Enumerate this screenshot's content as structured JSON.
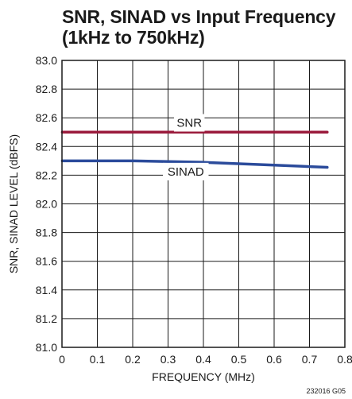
{
  "title": {
    "line1": "SNR, SINAD vs Input Frequency",
    "line2": "(1kHz to 750kHz)"
  },
  "figure_id": "232016 G05",
  "chart_data": {
    "type": "line",
    "title": "SNR, SINAD vs Input Frequency (1kHz to 750kHz)",
    "xlabel": "FREQUENCY (MHz)",
    "ylabel": "SNR, SINAD LEVEL (dBFS)",
    "xlim": [
      0,
      0.8
    ],
    "ylim": [
      81.0,
      83.0
    ],
    "x_ticks": [
      "0",
      "0.1",
      "0.2",
      "0.3",
      "0.4",
      "0.5",
      "0.6",
      "0.7",
      "0.8"
    ],
    "y_ticks": [
      "81.0",
      "81.2",
      "81.4",
      "81.6",
      "81.8",
      "82.0",
      "82.2",
      "82.4",
      "82.6",
      "82.8",
      "83.0"
    ],
    "grid": true,
    "series": [
      {
        "name": "SNR",
        "color": "#9b1b3c",
        "x": [
          0.001,
          0.1,
          0.2,
          0.3,
          0.4,
          0.5,
          0.6,
          0.7,
          0.75
        ],
        "y": [
          82.5,
          82.5,
          82.5,
          82.5,
          82.5,
          82.5,
          82.5,
          82.5,
          82.5
        ]
      },
      {
        "name": "SINAD",
        "color": "#2b4b9b",
        "x": [
          0.001,
          0.1,
          0.2,
          0.3,
          0.4,
          0.5,
          0.6,
          0.7,
          0.75
        ],
        "y": [
          82.3,
          82.3,
          82.3,
          82.295,
          82.29,
          82.28,
          82.27,
          82.26,
          82.255
        ]
      }
    ],
    "annotations": [
      "SNR",
      "SINAD"
    ]
  }
}
